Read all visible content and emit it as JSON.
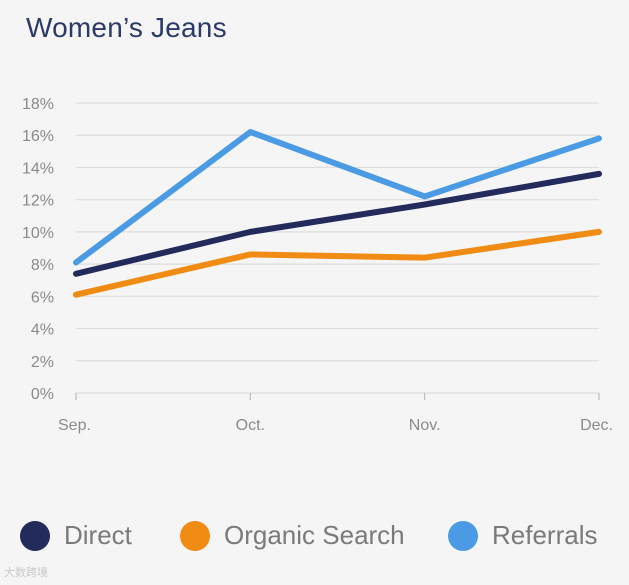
{
  "title": "Women’s Jeans",
  "chart_data": {
    "type": "line",
    "title": "Women’s Jeans",
    "categories": [
      "Sep.",
      "Oct.",
      "Nov.",
      "Dec."
    ],
    "ylim": [
      0,
      18
    ],
    "yticks": [
      0,
      2,
      4,
      6,
      8,
      10,
      12,
      14,
      16,
      18
    ],
    "ytick_labels": [
      "0%",
      "2%",
      "4%",
      "6%",
      "8%",
      "10%",
      "12%",
      "14%",
      "16%",
      "18%"
    ],
    "grid": true,
    "legend_position": "bottom",
    "series": [
      {
        "name": "Direct",
        "color": "#232a5c",
        "values": [
          7.4,
          10.0,
          11.7,
          13.6
        ]
      },
      {
        "name": "Organic Search",
        "color": "#f08c14",
        "values": [
          6.1,
          8.6,
          8.4,
          10.0
        ]
      },
      {
        "name": "Referrals",
        "color": "#4a9be3",
        "values": [
          8.1,
          16.2,
          12.2,
          15.8
        ]
      }
    ]
  },
  "watermark": "大数跨境"
}
